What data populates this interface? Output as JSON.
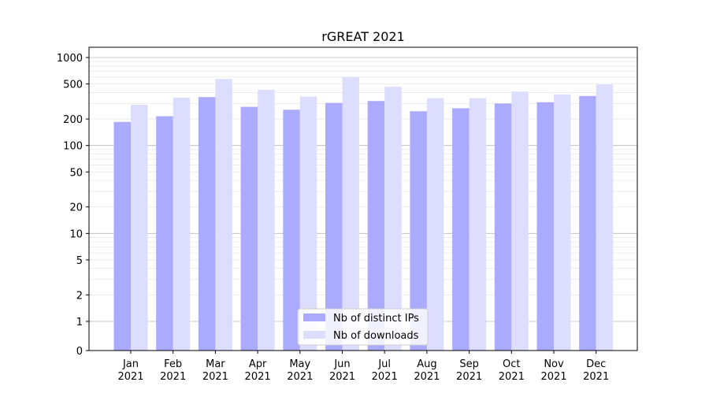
{
  "chart_data": {
    "type": "bar",
    "title": "rGREAT 2021",
    "xlabel": "",
    "ylabel": "",
    "yscale": "log (0 shown as 0)",
    "ylim": [
      0,
      1300
    ],
    "yticks": [
      0,
      1,
      2,
      5,
      10,
      20,
      50,
      100,
      200,
      500,
      1000
    ],
    "categories": [
      [
        "Jan",
        "2021"
      ],
      [
        "Feb",
        "2021"
      ],
      [
        "Mar",
        "2021"
      ],
      [
        "Apr",
        "2021"
      ],
      [
        "May",
        "2021"
      ],
      [
        "Jun",
        "2021"
      ],
      [
        "Jul",
        "2021"
      ],
      [
        "Aug",
        "2021"
      ],
      [
        "Sep",
        "2021"
      ],
      [
        "Oct",
        "2021"
      ],
      [
        "Nov",
        "2021"
      ],
      [
        "Dec",
        "2021"
      ]
    ],
    "series": [
      {
        "name": "Nb of distinct IPs",
        "color": "#aaaaff",
        "values": [
          185,
          215,
          355,
          275,
          255,
          305,
          320,
          245,
          265,
          300,
          310,
          365
        ]
      },
      {
        "name": "Nb of downloads",
        "color": "#ddddff",
        "values": [
          290,
          350,
          570,
          430,
          360,
          600,
          465,
          345,
          345,
          410,
          380,
          495
        ]
      }
    ],
    "legend": "bottom-center",
    "grid": true
  }
}
